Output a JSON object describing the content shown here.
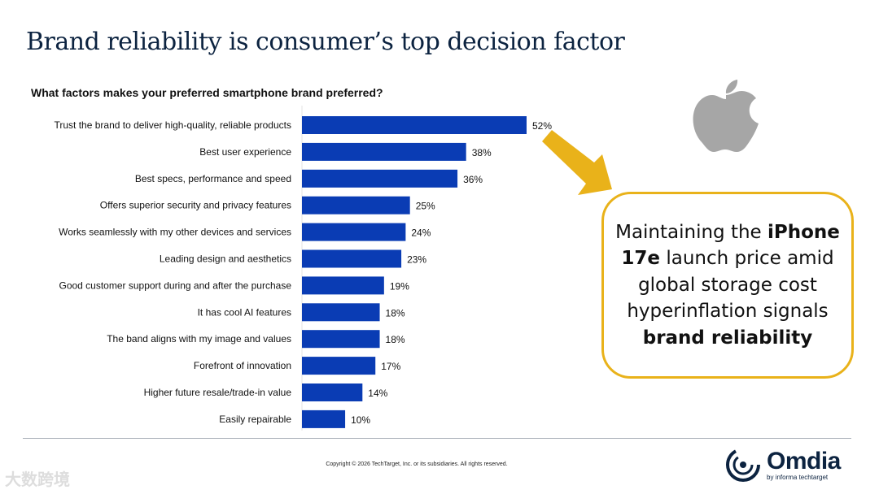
{
  "title": "Brand reliability is consumer’s top decision factor",
  "callout": {
    "pre": "Maintaining the ",
    "bold1": "iPhone 17e",
    "mid": " launch price amid global storage cost hyperinflation signals ",
    "bold2": "brand reliability"
  },
  "footer": {
    "copyright": "Copyright © 2026 TechTarget, Inc. or its subsidiaries. All rights reserved.",
    "logo": "Omdia",
    "logo_by": "by informa techtarget",
    "watermark": "大数跨境"
  },
  "colors": {
    "bar": "#0a3cb4",
    "arrow": "#e9b21a",
    "title": "#0c2340",
    "apple": "#a6a6a6"
  },
  "chart_data": {
    "type": "bar",
    "orientation": "horizontal",
    "title": "What factors makes your preferred smartphone brand preferred?",
    "categories": [
      "Trust the brand to deliver high-quality, reliable products",
      "Best user experience",
      "Best specs, performance and speed",
      "Offers superior security and privacy features",
      "Works seamlessly with my other devices and services",
      "Leading design and aesthetics",
      "Good customer support during and after the purchase",
      "It has cool AI features",
      "The band aligns with my image and values",
      "Forefront of innovation",
      "Higher future resale/trade-in value",
      "Easily repairable"
    ],
    "values": [
      52,
      38,
      36,
      25,
      24,
      23,
      19,
      18,
      18,
      17,
      14,
      10
    ],
    "labels": [
      "52%",
      "38%",
      "36%",
      "25%",
      "24%",
      "23%",
      "19%",
      "18%",
      "18%",
      "17%",
      "14%",
      "10%"
    ],
    "unit": "%",
    "xlim": [
      0,
      52
    ],
    "grid": false,
    "legend": "none"
  }
}
